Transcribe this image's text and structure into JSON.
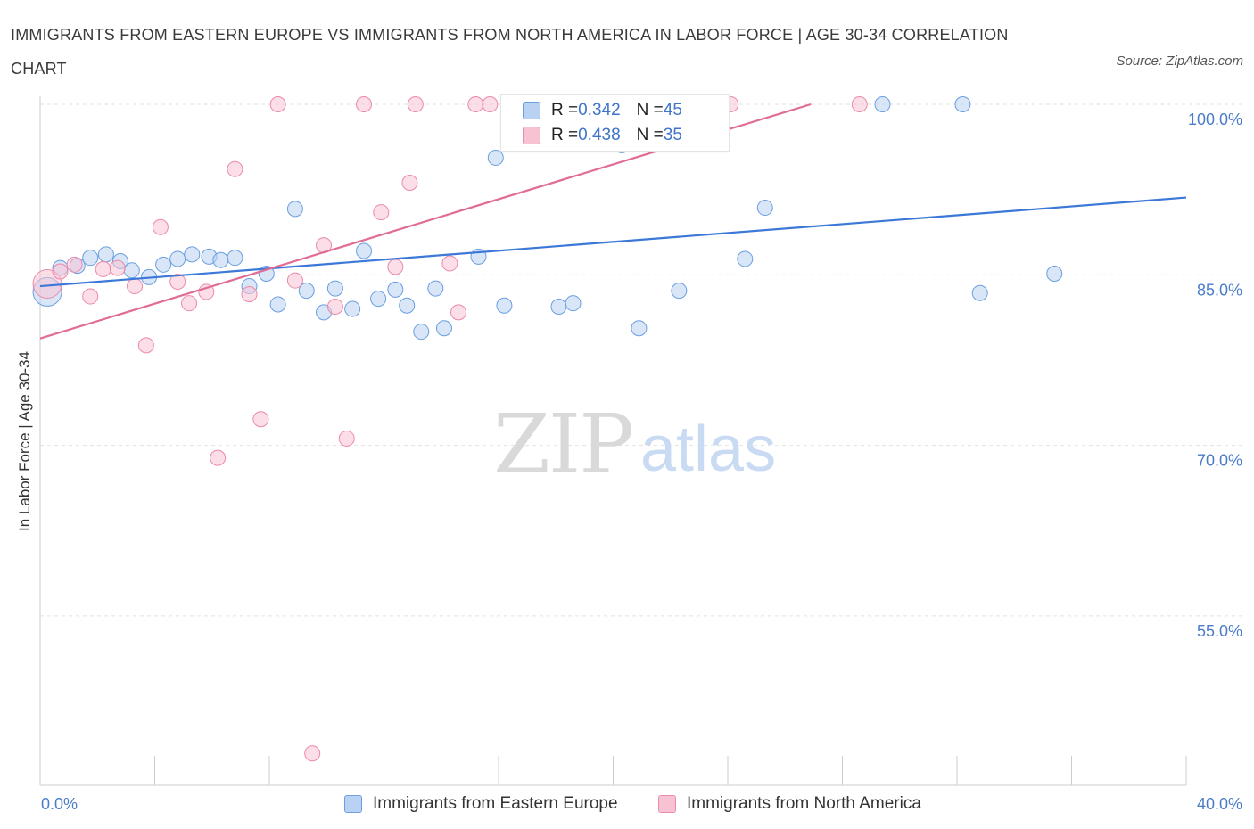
{
  "title": "IMMIGRANTS FROM EASTERN EUROPE VS IMMIGRANTS FROM NORTH AMERICA IN LABOR FORCE | AGE 30-34 CORRELATION CHART",
  "source": "Source: ZipAtlas.com",
  "watermark": {
    "zip": "ZIP",
    "atlas": "atlas"
  },
  "legend": {
    "rows": [
      {
        "r_label": "R = ",
        "r_value": "0.342",
        "n_label": "N = ",
        "n_value": "45"
      },
      {
        "r_label": "R = ",
        "r_value": "0.438",
        "n_label": "N = ",
        "n_value": "35"
      }
    ]
  },
  "chart_data": {
    "type": "scatter",
    "title": "IMMIGRANTS FROM EASTERN EUROPE VS IMMIGRANTS FROM NORTH AMERICA IN LABOR FORCE | AGE 30-34 CORRELATION CHART",
    "xlabel": "",
    "ylabel": "In Labor Force | Age 30-34",
    "xlim": [
      0,
      40
    ],
    "ylim": [
      40,
      101
    ],
    "x_tick_labels": [
      "0.0%",
      "40.0%"
    ],
    "y_ticks": [
      55,
      70,
      85,
      100
    ],
    "y_tick_labels": [
      "55.0%",
      "70.0%",
      "85.0%",
      "100.0%"
    ],
    "grid": true,
    "legend_position": "bottom",
    "series": [
      {
        "name": "Immigrants from Eastern Europe",
        "color": "#6a9fe0",
        "fill": "#b9d1f3",
        "R": 0.342,
        "N": 45,
        "trend": {
          "x": [
            0,
            40
          ],
          "y": [
            84.0,
            91.8
          ]
        },
        "points": [
          {
            "x": 0.25,
            "y": 83.5,
            "big": true
          },
          {
            "x": 0.7,
            "y": 85.6
          },
          {
            "x": 1.3,
            "y": 85.8
          },
          {
            "x": 1.75,
            "y": 86.5
          },
          {
            "x": 2.3,
            "y": 86.8
          },
          {
            "x": 2.8,
            "y": 86.2
          },
          {
            "x": 3.2,
            "y": 85.4
          },
          {
            "x": 3.8,
            "y": 84.8
          },
          {
            "x": 4.3,
            "y": 85.9
          },
          {
            "x": 4.8,
            "y": 86.4
          },
          {
            "x": 5.3,
            "y": 86.8
          },
          {
            "x": 5.9,
            "y": 86.6
          },
          {
            "x": 6.3,
            "y": 86.3
          },
          {
            "x": 6.8,
            "y": 86.5
          },
          {
            "x": 7.3,
            "y": 84.0
          },
          {
            "x": 7.9,
            "y": 85.1
          },
          {
            "x": 8.3,
            "y": 82.4
          },
          {
            "x": 8.9,
            "y": 90.8
          },
          {
            "x": 9.3,
            "y": 83.6
          },
          {
            "x": 9.9,
            "y": 81.7
          },
          {
            "x": 10.3,
            "y": 83.8
          },
          {
            "x": 10.9,
            "y": 82.0
          },
          {
            "x": 11.3,
            "y": 87.1
          },
          {
            "x": 11.8,
            "y": 82.9
          },
          {
            "x": 12.4,
            "y": 83.7
          },
          {
            "x": 12.8,
            "y": 82.3
          },
          {
            "x": 13.3,
            "y": 80.0
          },
          {
            "x": 13.8,
            "y": 83.8
          },
          {
            "x": 14.1,
            "y": 80.3
          },
          {
            "x": 15.3,
            "y": 86.6
          },
          {
            "x": 15.9,
            "y": 95.3
          },
          {
            "x": 16.2,
            "y": 82.3
          },
          {
            "x": 17.5,
            "y": 99.8
          },
          {
            "x": 18.1,
            "y": 82.2
          },
          {
            "x": 18.6,
            "y": 82.5
          },
          {
            "x": 20.3,
            "y": 96.4
          },
          {
            "x": 20.9,
            "y": 80.3
          },
          {
            "x": 21.2,
            "y": 99.6
          },
          {
            "x": 22.3,
            "y": 83.6
          },
          {
            "x": 24.6,
            "y": 86.4
          },
          {
            "x": 25.3,
            "y": 90.9
          },
          {
            "x": 29.4,
            "y": 100.0
          },
          {
            "x": 32.2,
            "y": 100.0
          },
          {
            "x": 32.8,
            "y": 83.4
          },
          {
            "x": 35.4,
            "y": 85.1
          }
        ]
      },
      {
        "name": "Immigrants from North America",
        "color": "#ec8aa9",
        "fill": "#f7c3d3",
        "R": 0.438,
        "N": 35,
        "trend": {
          "x": [
            0,
            26.9
          ],
          "y": [
            79.4,
            100.0
          ]
        },
        "points": [
          {
            "x": 0.25,
            "y": 84.2,
            "big": true
          },
          {
            "x": 0.7,
            "y": 85.3
          },
          {
            "x": 1.2,
            "y": 85.9
          },
          {
            "x": 1.75,
            "y": 83.1
          },
          {
            "x": 2.2,
            "y": 85.5
          },
          {
            "x": 2.7,
            "y": 85.6
          },
          {
            "x": 3.3,
            "y": 84.0
          },
          {
            "x": 3.7,
            "y": 78.8
          },
          {
            "x": 4.2,
            "y": 89.2
          },
          {
            "x": 4.8,
            "y": 84.4
          },
          {
            "x": 5.2,
            "y": 82.5
          },
          {
            "x": 5.8,
            "y": 83.5
          },
          {
            "x": 6.2,
            "y": 68.9
          },
          {
            "x": 6.8,
            "y": 94.3
          },
          {
            "x": 7.3,
            "y": 83.3
          },
          {
            "x": 7.7,
            "y": 72.3
          },
          {
            "x": 8.3,
            "y": 100.0
          },
          {
            "x": 8.9,
            "y": 84.5
          },
          {
            "x": 9.5,
            "y": 42.9
          },
          {
            "x": 9.9,
            "y": 87.6
          },
          {
            "x": 10.3,
            "y": 82.2
          },
          {
            "x": 10.7,
            "y": 70.6
          },
          {
            "x": 11.3,
            "y": 100.0
          },
          {
            "x": 11.9,
            "y": 90.5
          },
          {
            "x": 12.4,
            "y": 85.7
          },
          {
            "x": 12.9,
            "y": 93.1
          },
          {
            "x": 13.1,
            "y": 100.0
          },
          {
            "x": 14.3,
            "y": 86.0
          },
          {
            "x": 14.6,
            "y": 81.7
          },
          {
            "x": 15.2,
            "y": 100.0
          },
          {
            "x": 15.7,
            "y": 100.0
          },
          {
            "x": 17.9,
            "y": 100.0
          },
          {
            "x": 21.2,
            "y": 100.0
          },
          {
            "x": 24.1,
            "y": 100.0
          },
          {
            "x": 28.6,
            "y": 100.0
          }
        ]
      }
    ]
  }
}
